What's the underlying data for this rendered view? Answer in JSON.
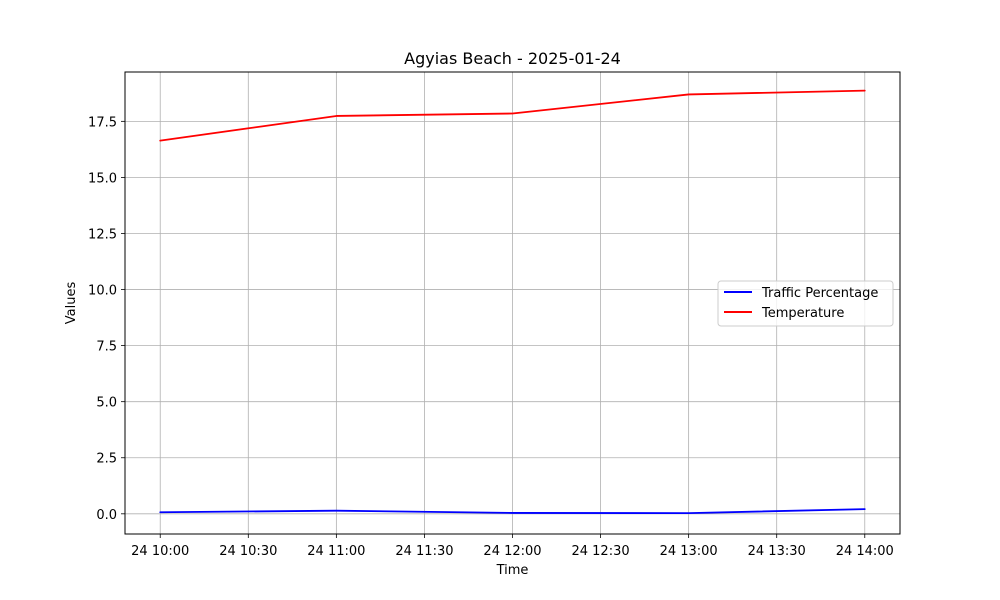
{
  "chart_data": {
    "type": "line",
    "title": "Agyias Beach - 2025-01-24",
    "xlabel": "Time",
    "ylabel": "Values",
    "x": [
      "24 10:00",
      "24 11:00",
      "24 12:00",
      "24 13:00",
      "24 14:00"
    ],
    "x_ticks": [
      "24 10:00",
      "24 10:30",
      "24 11:00",
      "24 11:30",
      "24 12:00",
      "24 12:30",
      "24 13:00",
      "24 13:30",
      "24 14:00"
    ],
    "y_ticks": [
      "0.0",
      "2.5",
      "5.0",
      "7.5",
      "10.0",
      "12.5",
      "15.0",
      "17.5"
    ],
    "ylim": [
      -0.9,
      19.7
    ],
    "grid": true,
    "legend_position": "center-right",
    "series": [
      {
        "name": "Traffic Percentage",
        "color": "#0000ff",
        "values": [
          0.07,
          0.14,
          0.04,
          0.03,
          0.21
        ]
      },
      {
        "name": "Temperature",
        "color": "#ff0000",
        "values": [
          16.64,
          17.74,
          17.85,
          18.7,
          18.87
        ]
      }
    ]
  }
}
